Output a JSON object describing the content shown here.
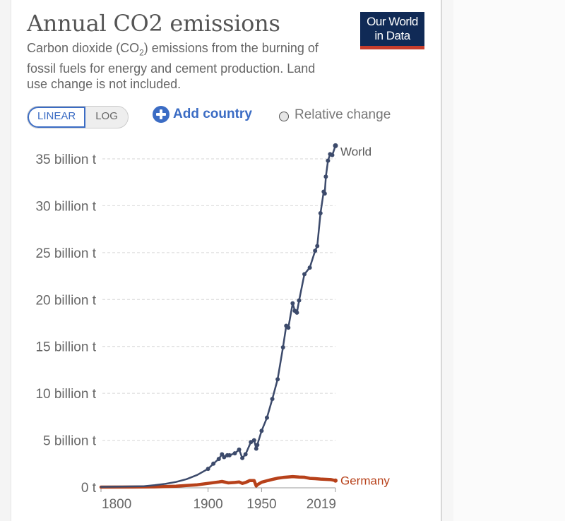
{
  "header": {
    "title": "Annual CO2 emissions",
    "subtitle_part1": "Carbon dioxide (CO",
    "subtitle_sub": "2",
    "subtitle_part2": ") emissions from the burning of fossil fuels for energy and cement production. Land use change is not included.",
    "logo_line1": "Our World",
    "logo_line2": "in Data"
  },
  "controls": {
    "scale_options": [
      "LINEAR",
      "LOG"
    ],
    "scale_selected": "LINEAR",
    "add_country_label": "Add country",
    "relative_change_label": "Relative change",
    "relative_change_checked": false
  },
  "colors": {
    "accent": "#3b6cc4",
    "world": "#3c4a6b",
    "germany": "#b7411a",
    "logo_bg": "#102a56",
    "logo_bar": "#c73d2c"
  },
  "chart_data": {
    "type": "line",
    "title": "Annual CO2 emissions",
    "xlabel": "",
    "ylabel": "",
    "xlim": [
      1800,
      2019
    ],
    "ylim": [
      0,
      35
    ],
    "x_ticks": [
      1800,
      1900,
      1950,
      2019
    ],
    "y_ticks": [
      {
        "value": 0,
        "label": "0 t"
      },
      {
        "value": 5,
        "label": "5 billion t"
      },
      {
        "value": 10,
        "label": "10 billion t"
      },
      {
        "value": 15,
        "label": "15 billion t"
      },
      {
        "value": 20,
        "label": "20 billion t"
      },
      {
        "value": 25,
        "label": "25 billion t"
      },
      {
        "value": 30,
        "label": "30 billion t"
      },
      {
        "value": 35,
        "label": "35 billion t"
      }
    ],
    "grid": "horizontal-dashed",
    "legend": "inline-right",
    "units": "billion tonnes",
    "series": [
      {
        "name": "World",
        "x": [
          1800,
          1820,
          1840,
          1850,
          1860,
          1870,
          1880,
          1890,
          1900,
          1905,
          1910,
          1913,
          1915,
          1918,
          1920,
          1925,
          1929,
          1932,
          1935,
          1940,
          1943,
          1945,
          1946,
          1950,
          1955,
          1960,
          1965,
          1970,
          1973,
          1975,
          1979,
          1981,
          1983,
          1985,
          1990,
          1995,
          2000,
          2002,
          2005,
          2008,
          2009,
          2010,
          2012,
          2014,
          2016,
          2019
        ],
        "values": [
          0.03,
          0.05,
          0.1,
          0.2,
          0.35,
          0.55,
          0.85,
          1.3,
          1.95,
          2.5,
          3.0,
          3.5,
          3.2,
          3.4,
          3.4,
          3.6,
          4.0,
          3.1,
          3.5,
          4.8,
          5.0,
          4.1,
          4.5,
          6.0,
          7.4,
          9.4,
          11.5,
          14.9,
          17.2,
          17.0,
          19.6,
          18.8,
          18.6,
          19.9,
          22.7,
          23.4,
          25.2,
          25.7,
          29.2,
          31.5,
          31.3,
          33.1,
          34.8,
          35.5,
          35.4,
          36.4
        ]
      },
      {
        "name": "Germany",
        "x": [
          1800,
          1830,
          1850,
          1870,
          1890,
          1900,
          1910,
          1913,
          1919,
          1925,
          1929,
          1932,
          1935,
          1939,
          1943,
          1945,
          1946,
          1950,
          1955,
          1960,
          1965,
          1970,
          1979,
          1985,
          1990,
          1995,
          2000,
          2005,
          2010,
          2015,
          2019
        ],
        "values": [
          0.0,
          0.01,
          0.03,
          0.1,
          0.25,
          0.4,
          0.55,
          0.6,
          0.45,
          0.5,
          0.55,
          0.4,
          0.5,
          0.7,
          0.7,
          0.12,
          0.25,
          0.52,
          0.68,
          0.82,
          0.95,
          1.03,
          1.12,
          1.08,
          1.05,
          0.93,
          0.9,
          0.86,
          0.83,
          0.8,
          0.7
        ]
      }
    ]
  }
}
